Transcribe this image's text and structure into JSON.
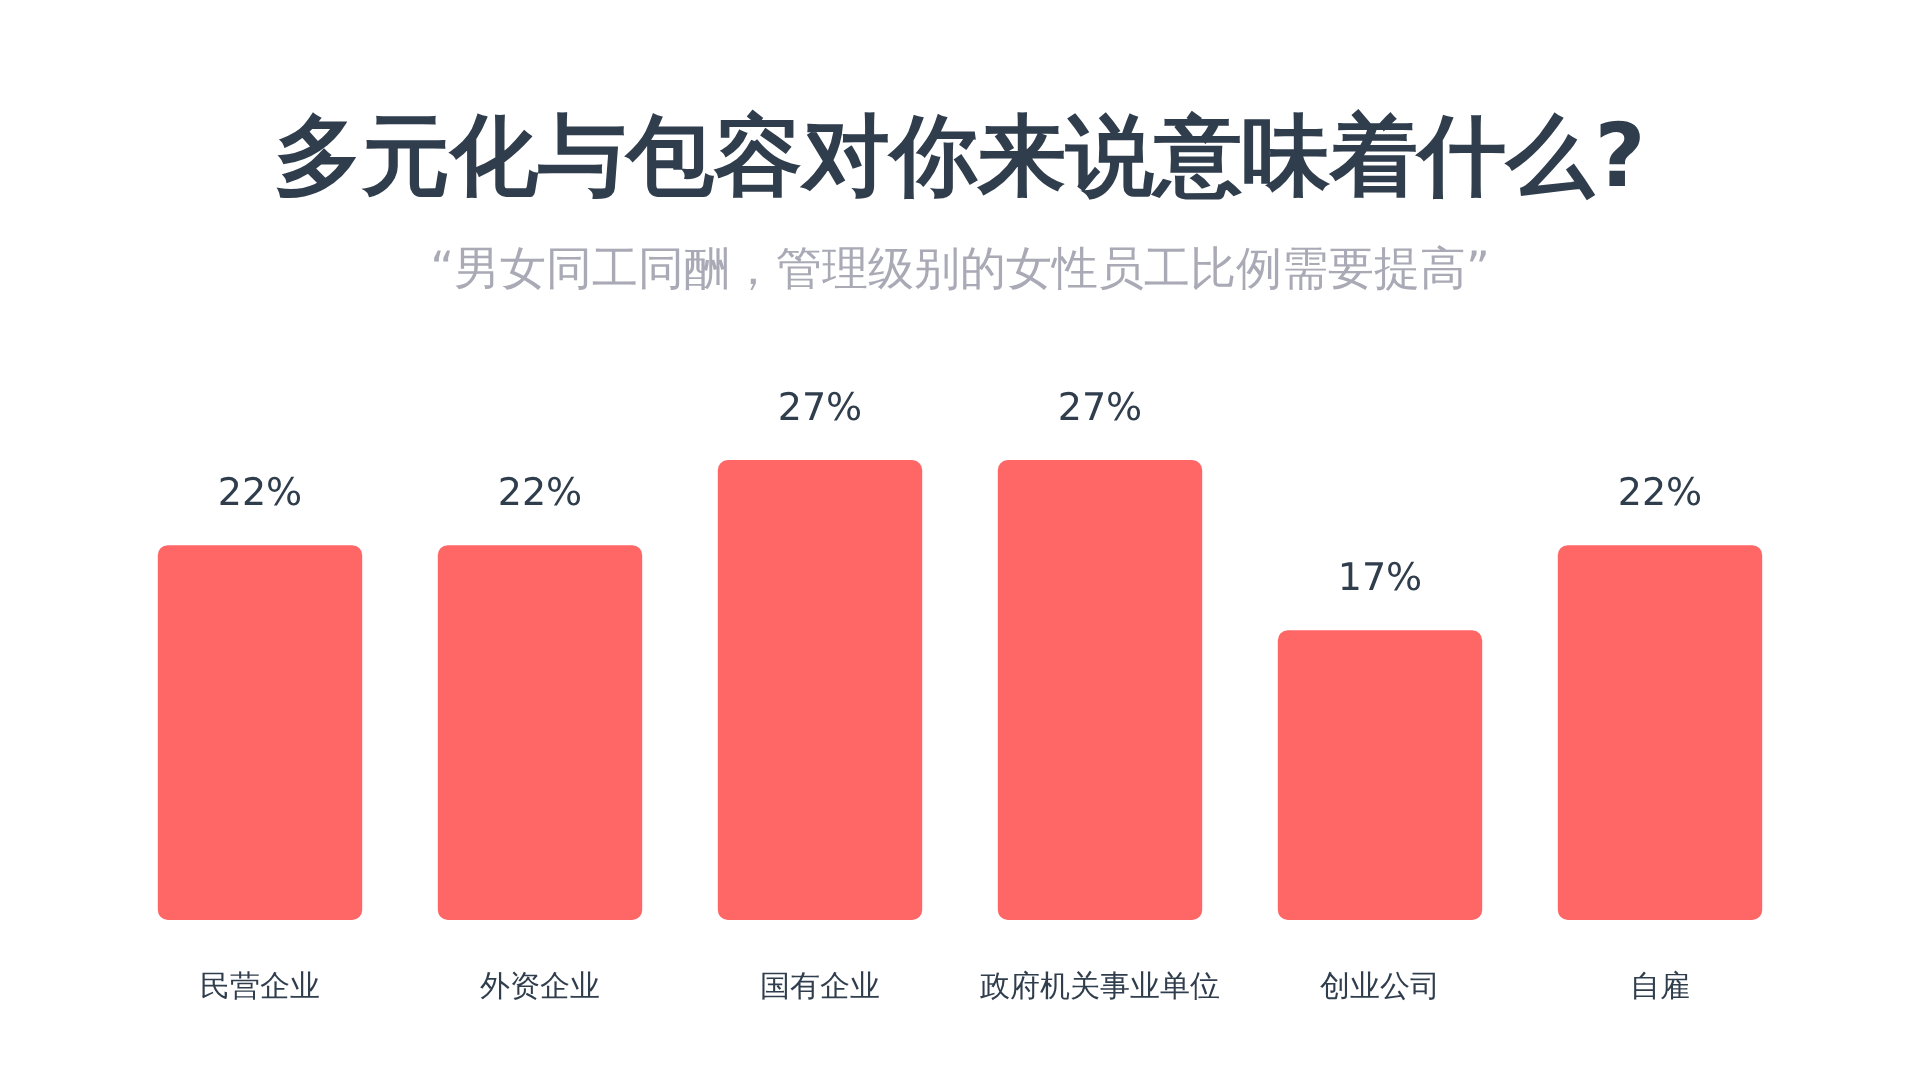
{
  "chart_data": {
    "type": "bar",
    "title": "多元化与包容对你来说意味着什么?",
    "subtitle": "“男女同工同酬，管理级别的女性员工比例需要提高”",
    "categories": [
      "民营企业",
      "外资企业",
      "国有企业",
      "政府机关事业单位",
      "创业公司",
      "自雇"
    ],
    "values": [
      22,
      22,
      27,
      27,
      17,
      22
    ],
    "value_labels": [
      "22%",
      "22%",
      "27%",
      "27%",
      "17%",
      "22%"
    ],
    "color": "#ff6666"
  }
}
